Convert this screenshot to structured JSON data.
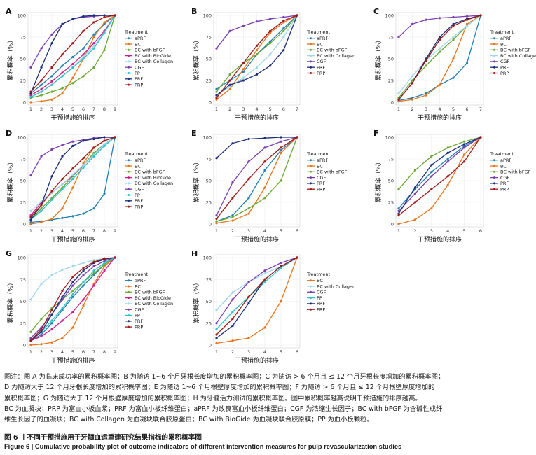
{
  "chart_data": [
    {
      "type": "line",
      "panel": "A",
      "xlabel": "干预措施的排序",
      "ylabel": "累积概率（%）",
      "x": [
        1,
        2,
        3,
        4,
        5,
        6,
        7,
        8,
        9
      ],
      "ylim": [
        0,
        100
      ],
      "legend_title": "Treatment",
      "series": [
        {
          "name": "aPRF",
          "color": "#1f7fb4",
          "values": [
            10,
            20,
            30,
            42,
            52,
            62,
            78,
            90,
            100
          ]
        },
        {
          "name": "BC",
          "color": "#e8731a",
          "values": [
            0,
            1,
            3,
            10,
            28,
            50,
            75,
            92,
            100
          ]
        },
        {
          "name": "BC with bFGF",
          "color": "#6aa832",
          "values": [
            5,
            8,
            12,
            16,
            22,
            30,
            40,
            60,
            100
          ]
        },
        {
          "name": "BC with BioGide",
          "color": "#d01c8b",
          "values": [
            8,
            15,
            24,
            34,
            44,
            55,
            68,
            82,
            100
          ]
        },
        {
          "name": "BC with Collagen",
          "color": "#9ed8ea",
          "values": [
            6,
            12,
            20,
            30,
            40,
            52,
            65,
            80,
            100
          ]
        },
        {
          "name": "CGF",
          "color": "#7a3eb0",
          "values": [
            40,
            62,
            78,
            90,
            96,
            98,
            99,
            100,
            100
          ]
        },
        {
          "name": "PP",
          "color": "#29c2c9",
          "values": [
            6,
            12,
            20,
            30,
            40,
            50,
            62,
            80,
            100
          ]
        },
        {
          "name": "PRF",
          "color": "#1c2d7a",
          "values": [
            10,
            40,
            68,
            90,
            96,
            99,
            100,
            100,
            100
          ]
        },
        {
          "name": "PRP",
          "color": "#a01818",
          "values": [
            12,
            25,
            40,
            55,
            68,
            82,
            92,
            98,
            100
          ]
        }
      ]
    },
    {
      "type": "line",
      "panel": "B",
      "xlabel": "干预措施的排序",
      "ylabel": "累积概率（%）",
      "x": [
        1,
        2,
        3,
        4,
        5,
        6,
        7
      ],
      "ylim": [
        0,
        100
      ],
      "legend_title": "Treatment",
      "series": [
        {
          "name": "aPRF",
          "color": "#1f7fb4",
          "values": [
            15,
            25,
            35,
            55,
            70,
            85,
            100
          ]
        },
        {
          "name": "BC",
          "color": "#e8731a",
          "values": [
            3,
            15,
            38,
            60,
            80,
            92,
            100
          ]
        },
        {
          "name": "BC with bFGF",
          "color": "#6aa832",
          "values": [
            12,
            32,
            45,
            55,
            68,
            82,
            100
          ]
        },
        {
          "name": "BC with Collagen",
          "color": "#9ed8ea",
          "values": [
            8,
            18,
            28,
            40,
            55,
            75,
            100
          ]
        },
        {
          "name": "CGF",
          "color": "#7a3eb0",
          "values": [
            62,
            82,
            88,
            93,
            96,
            98,
            100
          ]
        },
        {
          "name": "PRF",
          "color": "#1c2d7a",
          "values": [
            8,
            20,
            25,
            32,
            42,
            60,
            100
          ]
        },
        {
          "name": "PRP",
          "color": "#a01818",
          "values": [
            5,
            25,
            45,
            65,
            82,
            94,
            100
          ]
        }
      ]
    },
    {
      "type": "line",
      "panel": "C",
      "xlabel": "干预措施的排序",
      "ylabel": "累积概率（%）",
      "x": [
        1,
        2,
        3,
        4,
        5,
        6,
        7
      ],
      "ylim": [
        0,
        100
      ],
      "legend_title": "Treatment",
      "series": [
        {
          "name": "aPRF",
          "color": "#1f7fb4",
          "values": [
            2,
            5,
            10,
            20,
            28,
            45,
            100
          ]
        },
        {
          "name": "BC",
          "color": "#e8731a",
          "values": [
            1,
            3,
            8,
            20,
            50,
            90,
            100
          ]
        },
        {
          "name": "BC with bFGF",
          "color": "#6aa832",
          "values": [
            5,
            25,
            42,
            58,
            72,
            88,
            100
          ]
        },
        {
          "name": "BC with Collagen",
          "color": "#9ed8ea",
          "values": [
            10,
            30,
            48,
            62,
            75,
            88,
            100
          ]
        },
        {
          "name": "CGF",
          "color": "#7a3eb0",
          "values": [
            75,
            90,
            95,
            97,
            98,
            99,
            100
          ]
        },
        {
          "name": "PRF",
          "color": "#1c2d7a",
          "values": [
            3,
            22,
            50,
            75,
            90,
            96,
            100
          ]
        },
        {
          "name": "PRP",
          "color": "#a01818",
          "values": [
            3,
            22,
            48,
            72,
            88,
            95,
            100
          ]
        }
      ]
    },
    {
      "type": "line",
      "panel": "D",
      "xlabel": "干预措施的排序",
      "ylabel": "累积概率（%）",
      "x": [
        1,
        2,
        3,
        4,
        5,
        6,
        7,
        8,
        9
      ],
      "ylim": [
        0,
        100
      ],
      "legend_title": "Treatment",
      "series": [
        {
          "name": "aPRF",
          "color": "#1f7fb4",
          "values": [
            2,
            3,
            5,
            7,
            9,
            12,
            18,
            35,
            100
          ]
        },
        {
          "name": "BC",
          "color": "#e8731a",
          "values": [
            0,
            2,
            6,
            18,
            42,
            70,
            88,
            96,
            100
          ]
        },
        {
          "name": "BC with bFGF",
          "color": "#6aa832",
          "values": [
            5,
            18,
            30,
            42,
            55,
            68,
            82,
            92,
            100
          ]
        },
        {
          "name": "BC with BioGide",
          "color": "#d01c8b",
          "values": [
            10,
            25,
            36,
            46,
            56,
            68,
            80,
            92,
            100
          ]
        },
        {
          "name": "BC with Collagen",
          "color": "#9ed8ea",
          "values": [
            15,
            26,
            36,
            46,
            57,
            68,
            80,
            92,
            100
          ]
        },
        {
          "name": "CGF",
          "color": "#7a3eb0",
          "values": [
            56,
            78,
            86,
            91,
            95,
            97,
            99,
            100,
            100
          ]
        },
        {
          "name": "PP",
          "color": "#29c2c9",
          "values": [
            5,
            15,
            28,
            40,
            52,
            65,
            78,
            90,
            100
          ]
        },
        {
          "name": "PRF",
          "color": "#1c2d7a",
          "values": [
            5,
            22,
            55,
            78,
            90,
            96,
            98,
            100,
            100
          ]
        },
        {
          "name": "PRP",
          "color": "#a01818",
          "values": [
            8,
            22,
            38,
            52,
            64,
            76,
            88,
            96,
            100
          ]
        }
      ]
    },
    {
      "type": "line",
      "panel": "E",
      "xlabel": "干预措施的排序",
      "ylabel": "累积概率（%）",
      "x": [
        1,
        2,
        3,
        4,
        5,
        6
      ],
      "ylim": [
        0,
        100
      ],
      "legend_title": "Treatment",
      "series": [
        {
          "name": "aPRF",
          "color": "#1f7fb4",
          "values": [
            3,
            10,
            30,
            62,
            85,
            100
          ]
        },
        {
          "name": "BC",
          "color": "#e8731a",
          "values": [
            1,
            4,
            12,
            42,
            82,
            100
          ]
        },
        {
          "name": "BC with bFGF",
          "color": "#6aa832",
          "values": [
            3,
            8,
            18,
            30,
            50,
            100
          ]
        },
        {
          "name": "CGF",
          "color": "#7a3eb0",
          "values": [
            10,
            48,
            72,
            88,
            95,
            100
          ]
        },
        {
          "name": "PRF",
          "color": "#1c2d7a",
          "values": [
            76,
            93,
            98,
            99,
            100,
            100
          ]
        },
        {
          "name": "PRP",
          "color": "#a01818",
          "values": [
            6,
            30,
            52,
            72,
            88,
            100
          ]
        }
      ]
    },
    {
      "type": "line",
      "panel": "F",
      "xlabel": "干预措施的排序",
      "ylabel": "累积概率（%）",
      "x": [
        1,
        2,
        3,
        4,
        5,
        6
      ],
      "ylim": [
        0,
        100
      ],
      "legend_title": "Treatment",
      "series": [
        {
          "name": "aPRF",
          "color": "#1f7fb4",
          "values": [
            18,
            40,
            60,
            75,
            90,
            100
          ]
        },
        {
          "name": "BC",
          "color": "#e8731a",
          "values": [
            0,
            5,
            18,
            45,
            80,
            100
          ]
        },
        {
          "name": "BC with bFGF",
          "color": "#6aa832",
          "values": [
            40,
            62,
            78,
            88,
            95,
            100
          ]
        },
        {
          "name": "CGF",
          "color": "#7a3eb0",
          "values": [
            15,
            35,
            55,
            72,
            88,
            100
          ]
        },
        {
          "name": "PRF",
          "color": "#1c2d7a",
          "values": [
            12,
            42,
            68,
            82,
            92,
            100
          ]
        },
        {
          "name": "PRP",
          "color": "#a01818",
          "values": [
            10,
            25,
            40,
            55,
            72,
            100
          ]
        }
      ]
    },
    {
      "type": "line",
      "panel": "G",
      "xlabel": "干预措施的排序",
      "ylabel": "累积概率（%）",
      "x": [
        1,
        2,
        3,
        4,
        5,
        6,
        7,
        8,
        9
      ],
      "ylim": [
        0,
        100
      ],
      "legend_title": "Treatment",
      "series": [
        {
          "name": "aPRF",
          "color": "#1f7fb4",
          "values": [
            5,
            12,
            25,
            40,
            55,
            68,
            80,
            92,
            100
          ]
        },
        {
          "name": "BC",
          "color": "#e8731a",
          "values": [
            0,
            1,
            3,
            8,
            20,
            45,
            70,
            90,
            100
          ]
        },
        {
          "name": "BC with bFGF",
          "color": "#6aa832",
          "values": [
            15,
            30,
            42,
            52,
            62,
            72,
            82,
            92,
            100
          ]
        },
        {
          "name": "BC with BioGide",
          "color": "#d01c8b",
          "values": [
            5,
            10,
            18,
            28,
            38,
            52,
            68,
            85,
            100
          ]
        },
        {
          "name": "BC with Collagen",
          "color": "#9ed8ea",
          "values": [
            52,
            70,
            80,
            86,
            90,
            94,
            97,
            99,
            100
          ]
        },
        {
          "name": "CGF",
          "color": "#7a3eb0",
          "values": [
            8,
            20,
            35,
            52,
            68,
            80,
            90,
            96,
            100
          ]
        },
        {
          "name": "PP",
          "color": "#29c2c9",
          "values": [
            6,
            15,
            28,
            42,
            58,
            72,
            85,
            94,
            100
          ]
        },
        {
          "name": "PRF",
          "color": "#1c2d7a",
          "values": [
            5,
            15,
            35,
            55,
            72,
            85,
            94,
            98,
            100
          ]
        },
        {
          "name": "PRP",
          "color": "#a01818",
          "values": [
            5,
            18,
            40,
            62,
            78,
            88,
            95,
            99,
            100
          ]
        }
      ]
    },
    {
      "type": "line",
      "panel": "H",
      "xlabel": "干预措施的排序",
      "ylabel": "累积概率（%）",
      "x": [
        1,
        2,
        3,
        4,
        5,
        6
      ],
      "ylim": [
        0,
        100
      ],
      "legend_title": "Treatment",
      "series": [
        {
          "name": "BC",
          "color": "#e8731a",
          "values": [
            2,
            5,
            8,
            20,
            50,
            100
          ]
        },
        {
          "name": "BC with Collagen",
          "color": "#9ed8ea",
          "values": [
            40,
            60,
            72,
            82,
            90,
            100
          ]
        },
        {
          "name": "CGF",
          "color": "#7a3eb0",
          "values": [
            25,
            52,
            72,
            85,
            94,
            100
          ]
        },
        {
          "name": "PP",
          "color": "#29c2c9",
          "values": [
            18,
            38,
            55,
            72,
            88,
            100
          ]
        },
        {
          "name": "PRF",
          "color": "#1c2d7a",
          "values": [
            8,
            22,
            48,
            75,
            90,
            100
          ]
        },
        {
          "name": "PRP",
          "color": "#a01818",
          "values": [
            12,
            30,
            55,
            75,
            90,
            100
          ]
        }
      ]
    }
  ],
  "caption": {
    "lines": [
      "图注：图 A 为临床成功率的累积概率图；B 为随访 1~6 个月牙根长度增加的累积概率图；C 为随访 > 6 个月且 ≤ 12 个月牙根长度增加的累积概率图；",
      "D 为随访大于 12 个月牙根长度增加的累积概率图；E 为随访 1~6 个月根壁厚度增加的累积概率图；F 为随访 > 6 个月且 ≤ 12 个月根壁厚度增加的",
      "累积概率图；G 为随访大于 12 个月根壁厚度增加的累积概率图；H 为牙髓活力测试的累积概率图。图中累积概率越高说明干预措施的排序越高。",
      "BC 为血凝块；PRP 为富血小板血浆；PRF 为富血小板纤维蛋白；aPRF 为改良富血小板纤维蛋白；CGF 为浓缩生长因子；BC with bFGF 为含碱性成纤",
      "维生长因子的血凝块；BC with Collagen 为血凝块联合胶原蛋白；BC with BioGide 为血凝块联合胶原膜；PP 为血小板颗粒。"
    ],
    "figure_title_zh": "图 6 丨不同干预措施用于牙髓血运重建研究结果指标的累积概率图",
    "figure_title_en": "Figure 6 | Cumulative probability plot of outcome indicators of different intervention measures for pulp revascularization studies"
  }
}
